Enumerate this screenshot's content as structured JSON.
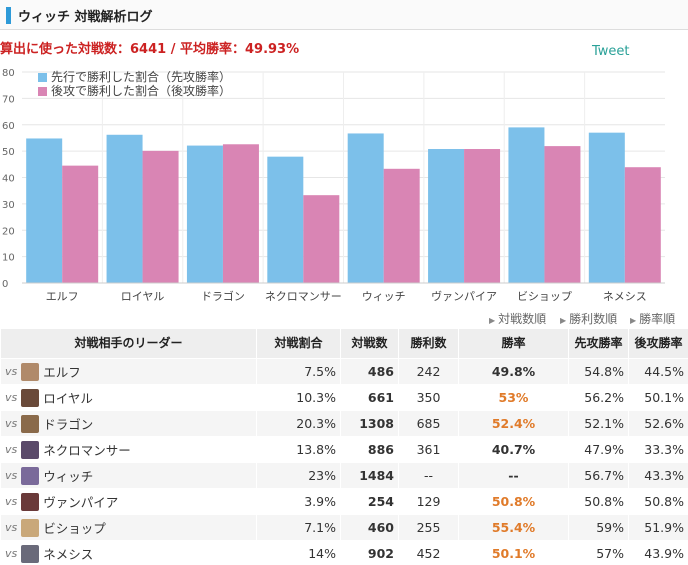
{
  "header": {
    "title": "ウィッチ 対戦解析ログ",
    "accent_color": "#2e9ad8"
  },
  "summary": {
    "text": "算出に使った対戦数：6441 / 平均勝率：49.93%",
    "color": "#cc2222"
  },
  "tweet": {
    "label": "Tweet",
    "color": "#2aa198"
  },
  "chart_data": {
    "type": "bar",
    "categories": [
      "エルフ",
      "ロイヤル",
      "ドラゴン",
      "ネクロマンサー",
      "ウィッチ",
      "ヴァンパイア",
      "ビショップ",
      "ネメシス"
    ],
    "series": [
      {
        "name": "先行で勝利した割合（先攻勝率）",
        "color": "#7cc0ea",
        "values": [
          54.8,
          56.2,
          52.1,
          47.9,
          56.7,
          50.8,
          59,
          57
        ]
      },
      {
        "name": "後攻で勝利した割合（後攻勝率）",
        "color": "#d985b4",
        "values": [
          44.5,
          50.1,
          52.6,
          33.3,
          43.3,
          50.8,
          51.9,
          43.9
        ]
      }
    ],
    "yticks": [
      "0",
      "10",
      "20",
      "30",
      "40",
      "50",
      "60",
      "70",
      "80"
    ],
    "ylim": [
      0,
      80
    ],
    "grid": true,
    "legend": "top-left"
  },
  "sort_links": [
    "対戦数順",
    "勝利数順",
    "勝率順"
  ],
  "table": {
    "headers": [
      "対戦相手のリーダー",
      "対戦割合",
      "対戦数",
      "勝利数",
      "勝率",
      "先攻勝率",
      "後攻勝率"
    ],
    "vs_label": "vs",
    "highlight_color": "#e07b2a",
    "rows": [
      {
        "leader": "エルフ",
        "ratio": "7.5%",
        "count": "486",
        "wins": "242",
        "winrate": "49.8%",
        "first": "54.8%",
        "second": "44.5%",
        "hi": false,
        "portrait": "#b08a6a"
      },
      {
        "leader": "ロイヤル",
        "ratio": "10.3%",
        "count": "661",
        "wins": "350",
        "winrate": "53%",
        "first": "56.2%",
        "second": "50.1%",
        "hi": true,
        "portrait": "#6a4a3a"
      },
      {
        "leader": "ドラゴン",
        "ratio": "20.3%",
        "count": "1308",
        "wins": "685",
        "winrate": "52.4%",
        "first": "52.1%",
        "second": "52.6%",
        "hi": true,
        "portrait": "#8a6a4a"
      },
      {
        "leader": "ネクロマンサー",
        "ratio": "13.8%",
        "count": "886",
        "wins": "361",
        "winrate": "40.7%",
        "first": "47.9%",
        "second": "33.3%",
        "hi": false,
        "portrait": "#5a4a6a"
      },
      {
        "leader": "ウィッチ",
        "ratio": "23%",
        "count": "1484",
        "wins": "--",
        "winrate": "--",
        "first": "56.7%",
        "second": "43.3%",
        "hi": false,
        "portrait": "#7a6a9a"
      },
      {
        "leader": "ヴァンパイア",
        "ratio": "3.9%",
        "count": "254",
        "wins": "129",
        "winrate": "50.8%",
        "first": "50.8%",
        "second": "50.8%",
        "hi": true,
        "portrait": "#6a3a3a"
      },
      {
        "leader": "ビショップ",
        "ratio": "7.1%",
        "count": "460",
        "wins": "255",
        "winrate": "55.4%",
        "first": "59%",
        "second": "51.9%",
        "hi": true,
        "portrait": "#c9a87a"
      },
      {
        "leader": "ネメシス",
        "ratio": "14%",
        "count": "902",
        "wins": "452",
        "winrate": "50.1%",
        "first": "57%",
        "second": "43.9%",
        "hi": true,
        "portrait": "#6a6a7a"
      }
    ]
  }
}
